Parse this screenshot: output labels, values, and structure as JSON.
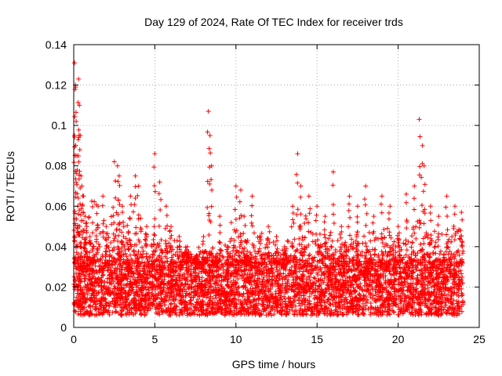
{
  "chart_data": {
    "type": "scatter",
    "title": "Day 129 of 2024, Rate Of TEC Index for receiver trds",
    "xlabel": "GPS time / hours",
    "ylabel": "ROTI / TECUs",
    "xlim": [
      0,
      25
    ],
    "ylim": [
      0,
      0.14
    ],
    "xticks": [
      "0",
      "5",
      "10",
      "15",
      "20",
      "25"
    ],
    "yticks": [
      "0",
      "0.02",
      "0.04",
      "0.06",
      "0.08",
      "0.1",
      "0.12",
      "0.14"
    ],
    "grid": true,
    "marker": "plus",
    "color": "#ff0000",
    "series": [
      {
        "x": [
          0.05,
          0.1,
          0.12,
          0.15,
          0.2,
          0.25,
          0.3,
          0.35,
          0.4,
          0.45,
          0.5,
          0.6,
          0.7,
          0.8,
          1.0,
          1.2,
          1.5,
          1.8,
          2.0,
          2.5,
          2.7,
          2.8,
          3.0,
          3.5,
          3.8,
          4.0,
          4.5,
          5.0,
          5.3,
          5.7,
          6.0,
          6.5,
          7.0,
          7.5,
          8.0,
          8.3,
          8.4,
          8.5,
          9.0,
          9.5,
          10.0,
          10.3,
          10.5,
          11.0,
          11.5,
          12.0,
          12.5,
          13.0,
          13.5,
          13.8,
          14.0,
          14.5,
          15.0,
          15.5,
          16.0,
          16.5,
          17.0,
          17.5,
          18.0,
          18.5,
          19.0,
          19.5,
          20.0,
          20.5,
          21.0,
          21.3,
          21.5,
          21.6,
          22.0,
          22.5,
          23.0,
          23.5,
          23.9
        ],
        "y": [
          0.131,
          0.12,
          0.119,
          0.102,
          0.085,
          0.06,
          0.123,
          0.11,
          0.095,
          0.075,
          0.07,
          0.065,
          0.055,
          0.05,
          0.045,
          0.04,
          0.06,
          0.065,
          0.05,
          0.082,
          0.08,
          0.075,
          0.06,
          0.065,
          0.075,
          0.07,
          0.05,
          0.086,
          0.072,
          0.06,
          0.05,
          0.045,
          0.04,
          0.035,
          0.045,
          0.107,
          0.095,
          0.08,
          0.055,
          0.04,
          0.07,
          0.068,
          0.055,
          0.065,
          0.045,
          0.05,
          0.045,
          0.04,
          0.06,
          0.086,
          0.07,
          0.065,
          0.06,
          0.055,
          0.077,
          0.05,
          0.065,
          0.06,
          0.07,
          0.055,
          0.065,
          0.06,
          0.05,
          0.066,
          0.07,
          0.103,
          0.09,
          0.08,
          0.06,
          0.055,
          0.065,
          0.06,
          0.057
        ],
        "background": {
          "density_per_hour": 220,
          "baseline_range": [
            0.006,
            0.032
          ],
          "cap_envelope_hours": [
            0,
            1,
            2,
            3,
            4,
            5,
            6,
            7,
            8,
            9,
            10,
            11,
            12,
            13,
            14,
            15,
            16,
            17,
            18,
            19,
            20,
            21,
            22,
            23,
            24
          ],
          "cap_envelope_values": [
            0.06,
            0.065,
            0.06,
            0.065,
            0.06,
            0.05,
            0.05,
            0.04,
            0.04,
            0.045,
            0.055,
            0.05,
            0.045,
            0.045,
            0.06,
            0.055,
            0.05,
            0.055,
            0.05,
            0.055,
            0.05,
            0.06,
            0.055,
            0.055,
            0.05
          ]
        }
      }
    ]
  }
}
